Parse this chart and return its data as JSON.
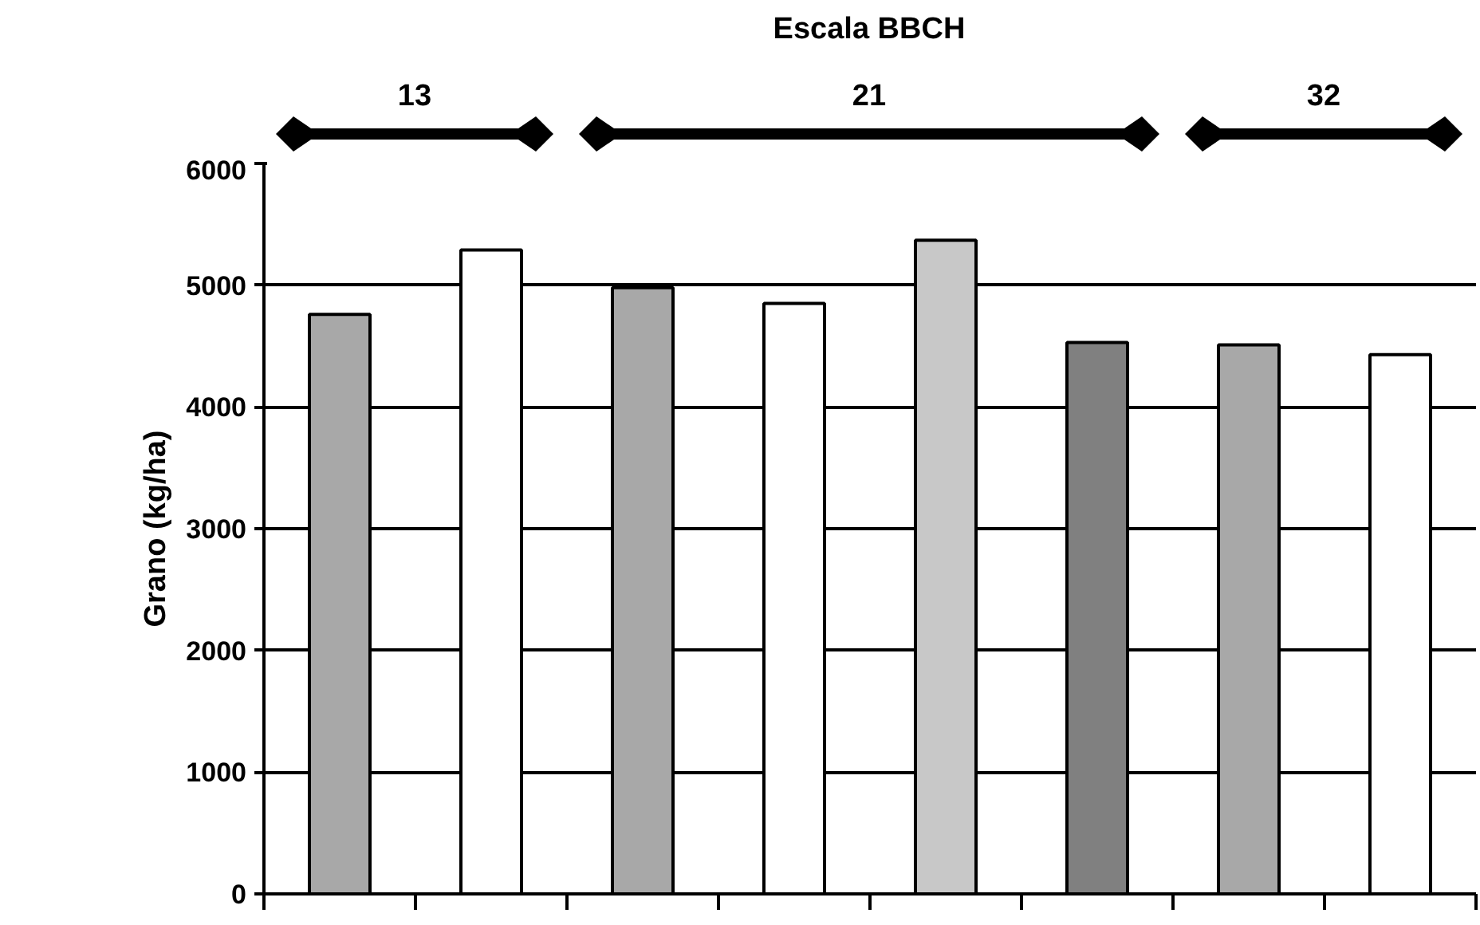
{
  "chart_data": {
    "type": "bar",
    "title": "Escala BBCH",
    "ylabel": "Grano (kg/ha)",
    "categories": [
      null,
      null,
      null,
      null,
      null,
      null,
      null,
      null
    ],
    "values": [
      4760,
      5290,
      4980,
      4850,
      5370,
      4530,
      4510,
      4430
    ],
    "colors": [
      "#a8a8a8",
      "#ffffff",
      "#a8a8a8",
      "#ffffff",
      "#c8c8c8",
      "#808080",
      "#a8a8a8",
      "#ffffff"
    ],
    "annotations": [
      "13",
      "21",
      "32"
    ],
    "ylim": [
      0,
      6000
    ],
    "yticks": [
      0,
      1000,
      2000,
      3000,
      4000,
      5000,
      6000
    ],
    "grid": "y",
    "tick_labels": "y"
  }
}
